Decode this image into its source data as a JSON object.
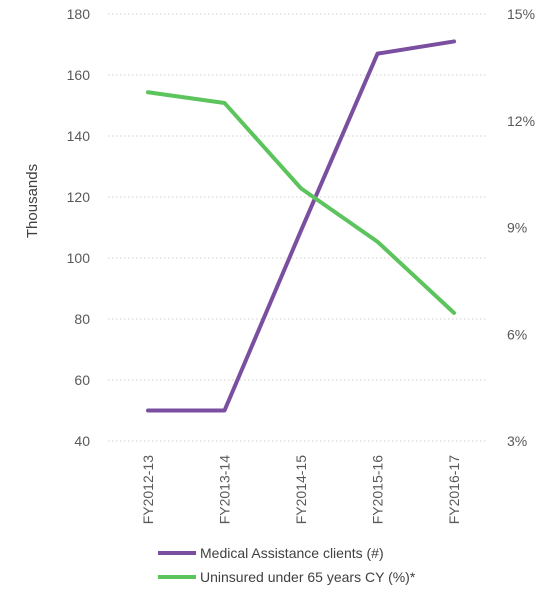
{
  "chart_data": {
    "type": "line",
    "categories": [
      "FY2012-13",
      "FY2013-14",
      "FY2014-15",
      "FY2015-16",
      "FY2016-17"
    ],
    "ylabel": "Thousands",
    "ylim": [
      40,
      180
    ],
    "y_ticks": [
      "180",
      "160",
      "140",
      "120",
      "100",
      "80",
      "60",
      "40"
    ],
    "y2lim": [
      3,
      15
    ],
    "y2_ticks": [
      "15%",
      "12%",
      "9%",
      "6%",
      "3%"
    ],
    "grid": true,
    "legend_position": "bottom",
    "series": [
      {
        "name": "Medical Assistance clients (#)",
        "axis": "left",
        "color": "#7b4fa0",
        "values": [
          50,
          50,
          109,
          167,
          171
        ]
      },
      {
        "name": "Uninsured under 65 years CY (%)*",
        "axis": "right",
        "color": "#5cc45c",
        "values": [
          12.8,
          12.5,
          10.1,
          8.6,
          6.6
        ]
      }
    ]
  }
}
